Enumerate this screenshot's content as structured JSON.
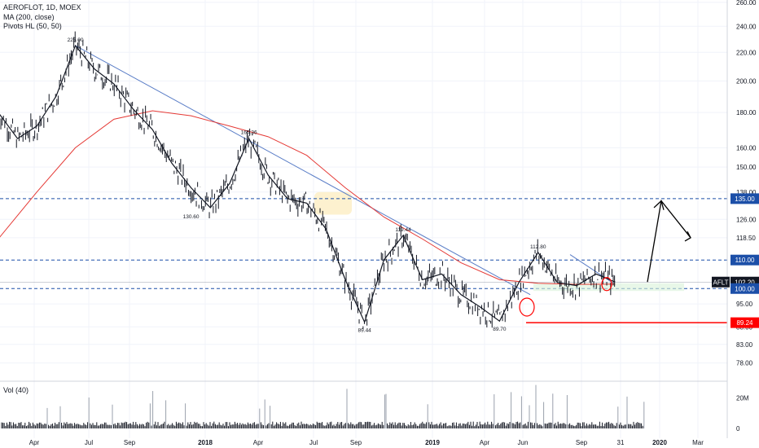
{
  "legend": {
    "symbol_line": "AEROFLOT, 1D, MOEX",
    "ma_line": "MA (200, close)",
    "pivots_line": "Pivots HL (50, 50)"
  },
  "volume_legend": "Vol (40)",
  "colors": {
    "price": "#131722",
    "ma": "#e53935",
    "trendline": "#5b7ec7",
    "level": "#1c4fa8",
    "support": "#ff0000",
    "badge_blue": "#1c4fa8",
    "badge_dark": "#131722",
    "badge_red": "#ff0000",
    "grid": "#f0f3fa",
    "highlight": "#fdf1cf"
  },
  "chart_data": {
    "type": "line",
    "title": "AEROFLOT, 1D, MOEX",
    "y_scale": "log",
    "ylim": [
      74,
      262
    ],
    "y_ticks": [
      {
        "value": 260,
        "label": "260.00"
      },
      {
        "value": 240,
        "label": "240.00"
      },
      {
        "value": 220,
        "label": "220.00"
      },
      {
        "value": 200,
        "label": "200.00"
      },
      {
        "value": 180,
        "label": "180.00"
      },
      {
        "value": 160,
        "label": "160.00"
      },
      {
        "value": 150,
        "label": "150.00"
      },
      {
        "value": 138,
        "label": "138.00"
      },
      {
        "value": 126,
        "label": "126.00"
      },
      {
        "value": 118.5,
        "label": "118.50"
      },
      {
        "value": 95,
        "label": "95.00"
      },
      {
        "value": 88,
        "label": "88.00"
      },
      {
        "value": 83,
        "label": "83.00"
      },
      {
        "value": 78,
        "label": "78.00"
      }
    ],
    "x_ticks": [
      "Apr",
      "Jul",
      "Sep",
      "2018",
      "Apr",
      "Jul",
      "Sep",
      "2019",
      "Apr",
      "Jun",
      "Sep",
      "31",
      "2020",
      "Mar"
    ],
    "x_ticks_bold": [
      "2018",
      "2019",
      "2020"
    ],
    "series": [
      {
        "name": "AEROFLOT",
        "x": [
          "2017-03",
          "2017-04",
          "2017-05",
          "2017-06",
          "2017-07",
          "2017-08",
          "2017-09",
          "2017-10",
          "2017-11",
          "2017-12",
          "2018-01",
          "2018-02",
          "2018-03",
          "2018-04",
          "2018-05",
          "2018-06",
          "2018-07",
          "2018-08",
          "2018-09",
          "2018-10",
          "2018-11",
          "2018-12",
          "2019-01",
          "2019-02",
          "2019-03",
          "2019-04",
          "2019-05",
          "2019-06",
          "2019-07",
          "2019-08",
          "2019-09",
          "2019-10",
          "2019-11"
        ],
        "values": [
          180,
          165,
          172,
          190,
          225,
          208,
          198,
          182,
          170,
          152,
          140,
          131,
          142,
          165,
          146,
          135,
          133,
          122,
          103,
          89.4,
          110,
          119.4,
          103,
          105,
          98,
          94,
          89.7,
          102,
          112.8,
          102,
          101,
          105,
          102.2
        ]
      },
      {
        "name": "MA (200, close)",
        "x": [
          "2017-03",
          "2017-05",
          "2017-07",
          "2017-09",
          "2017-11",
          "2018-01",
          "2018-03",
          "2018-05",
          "2018-07",
          "2018-09",
          "2018-11",
          "2019-01",
          "2019-03",
          "2019-05",
          "2019-07",
          "2019-09",
          "2019-11"
        ],
        "values": [
          118,
          138,
          160,
          176,
          181,
          178,
          172,
          166,
          156,
          140,
          127,
          118,
          109,
          103,
          101.8,
          101.4,
          101.5
        ]
      }
    ],
    "pivot_labels": [
      "225.00",
      "165.36",
      "130.60",
      "119.44",
      "89.44",
      "89.70",
      "112.80"
    ],
    "price_labels": [
      {
        "value": 135,
        "label": "135.00"
      },
      {
        "value": 110,
        "label": "110.00"
      },
      {
        "symbol": "AFLT",
        "value": 102.2,
        "label": "102.20"
      },
      {
        "value": 100,
        "label": "100.00"
      },
      {
        "value": 89.24,
        "label": "89.24"
      }
    ],
    "volume": {
      "ylim": [
        0,
        30
      ],
      "ticks": [
        {
          "value": 20,
          "label": "20M"
        },
        {
          "value": 0,
          "label": "0"
        }
      ]
    }
  }
}
